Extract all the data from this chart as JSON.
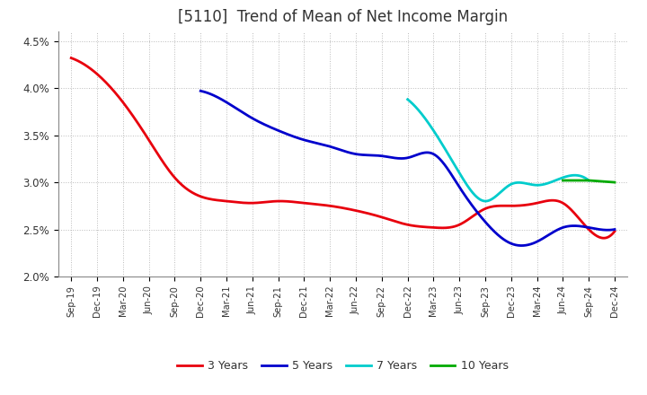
{
  "title": "[5110]  Trend of Mean of Net Income Margin",
  "ylim": [
    0.02,
    0.046
  ],
  "yticks": [
    0.02,
    0.025,
    0.03,
    0.035,
    0.04,
    0.045
  ],
  "ytick_labels": [
    "2.0%",
    "2.5%",
    "3.0%",
    "3.5%",
    "4.0%",
    "4.5%"
  ],
  "x_labels": [
    "Sep-19",
    "Dec-19",
    "Mar-20",
    "Jun-20",
    "Sep-20",
    "Dec-20",
    "Mar-21",
    "Jun-21",
    "Sep-21",
    "Dec-21",
    "Mar-22",
    "Jun-22",
    "Sep-22",
    "Dec-22",
    "Mar-23",
    "Jun-23",
    "Sep-23",
    "Dec-23",
    "Mar-24",
    "Jun-24",
    "Sep-24",
    "Dec-24"
  ],
  "series_3y": [
    0.0432,
    0.0415,
    0.0385,
    0.0345,
    0.0305,
    0.0285,
    0.028,
    0.0278,
    0.028,
    0.0278,
    0.0275,
    0.027,
    0.0263,
    0.0255,
    0.0252,
    0.0255,
    0.0272,
    0.0275,
    0.0278,
    0.0278,
    0.025,
    0.0248
  ],
  "series_5y": [
    null,
    null,
    null,
    null,
    null,
    0.0397,
    0.0385,
    0.0368,
    0.0355,
    0.0345,
    0.0338,
    0.033,
    0.0328,
    0.0326,
    0.033,
    0.0295,
    0.0258,
    0.0235,
    0.0237,
    0.0252,
    0.0252,
    0.025
  ],
  "series_7y": [
    null,
    null,
    null,
    null,
    null,
    null,
    null,
    null,
    null,
    null,
    null,
    null,
    null,
    0.0388,
    0.0355,
    0.031,
    0.028,
    0.0298,
    0.0297,
    0.0305,
    0.0302,
    null
  ],
  "series_10y": [
    null,
    null,
    null,
    null,
    null,
    null,
    null,
    null,
    null,
    null,
    null,
    null,
    null,
    null,
    null,
    null,
    null,
    null,
    null,
    0.0302,
    0.0302,
    0.03
  ],
  "color_3y": "#e8000d",
  "color_5y": "#0000cc",
  "color_7y": "#00cccc",
  "color_10y": "#00aa00",
  "background_color": "#ffffff",
  "grid_color": "#aaaaaa",
  "title_fontsize": 12,
  "legend_labels": [
    "3 Years",
    "5 Years",
    "7 Years",
    "10 Years"
  ]
}
